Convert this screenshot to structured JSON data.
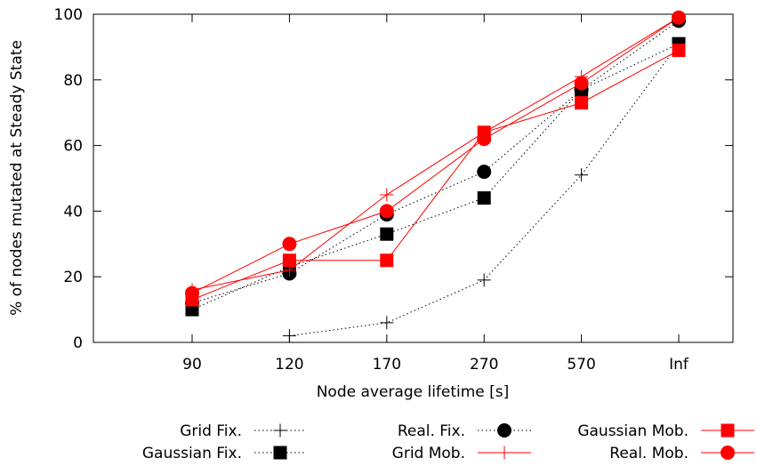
{
  "chart_data": {
    "type": "line",
    "xlabel": "Node average lifetime [s]",
    "ylabel": "% of nodes mutated at Steady State",
    "categories": [
      "90",
      "120",
      "170",
      "270",
      "570",
      "Inf"
    ],
    "ylim": [
      0,
      100
    ],
    "yticks": [
      "0",
      "20",
      "40",
      "60",
      "80",
      "100"
    ],
    "grid": false,
    "legend_position": "bottom",
    "colors": {
      "fixed": "#000000",
      "mobile": "#ff0000"
    },
    "series": [
      {
        "name": "Grid Fix.",
        "style": "dotted",
        "marker": "plus",
        "color": "#000000",
        "values": [
          null,
          2,
          6,
          19,
          51,
          91
        ]
      },
      {
        "name": "Gaussian Fix.",
        "style": "dotted",
        "marker": "square",
        "color": "#000000",
        "values": [
          10,
          23,
          33,
          44,
          77,
          91
        ]
      },
      {
        "name": "Real. Fix.",
        "style": "dotted",
        "marker": "circle",
        "color": "#000000",
        "values": [
          12,
          21,
          39,
          52,
          77,
          98
        ]
      },
      {
        "name": "Grid Mob.",
        "style": "solid",
        "marker": "plus",
        "color": "#ff0000",
        "values": [
          16,
          22,
          45,
          64,
          81,
          99
        ]
      },
      {
        "name": "Gaussian Mob.",
        "style": "solid",
        "marker": "square",
        "color": "#ff0000",
        "values": [
          13,
          25,
          25,
          64,
          73,
          89
        ]
      },
      {
        "name": "Real. Mob.",
        "style": "solid",
        "marker": "circle",
        "color": "#ff0000",
        "values": [
          15,
          30,
          40,
          62,
          79,
          99
        ]
      }
    ]
  }
}
